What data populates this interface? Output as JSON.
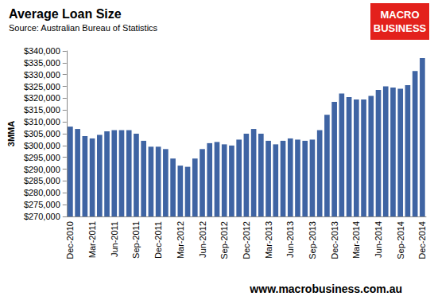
{
  "chart_data": {
    "type": "bar",
    "title": "Average Loan Size",
    "subtitle": "Source: Australian Bureau of Statistics",
    "y_label": "3MMA",
    "logo": [
      "MACRO",
      "BUSINESS"
    ],
    "footer": "www.macrobusiness.com.au",
    "color": "#3f64a3",
    "grid": false,
    "categories": [
      "Dec-2010",
      null,
      null,
      "Mar-2011",
      null,
      null,
      "Jun-2011",
      null,
      null,
      "Sep-2011",
      null,
      null,
      "Dec-2011",
      null,
      null,
      "Mar-2012",
      null,
      null,
      "Jun-2012",
      null,
      null,
      "Sep-2012",
      null,
      null,
      "Dec-2012",
      null,
      null,
      "Mar-2013",
      null,
      null,
      "Jun-2013",
      null,
      null,
      "Sep-2013",
      null,
      null,
      "Dec-2013",
      null,
      null,
      "Mar-2014",
      null,
      null,
      "Jun-2014",
      null,
      null,
      "Sep-2014",
      null,
      null,
      "Dec-2014"
    ],
    "values": [
      308000,
      307000,
      304000,
      303000,
      304500,
      306000,
      306500,
      306500,
      306500,
      305000,
      302000,
      299500,
      299500,
      298500,
      294500,
      291500,
      291000,
      294500,
      298500,
      301000,
      301500,
      300500,
      300000,
      302500,
      305000,
      307000,
      305000,
      302000,
      300500,
      302000,
      303000,
      302500,
      302000,
      302500,
      306500,
      313000,
      318500,
      322000,
      320500,
      319500,
      319500,
      321000,
      323500,
      325000,
      324500,
      324000,
      325500,
      331500,
      337000
    ],
    "ylim": [
      270000,
      340000
    ],
    "yticks": [
      {
        "value": 270000,
        "label": "$270,000"
      },
      {
        "value": 275000,
        "label": "$275,000"
      },
      {
        "value": 280000,
        "label": "$280,000"
      },
      {
        "value": 285000,
        "label": "$285,000"
      },
      {
        "value": 290000,
        "label": "$290,000"
      },
      {
        "value": 295000,
        "label": "$295,000"
      },
      {
        "value": 300000,
        "label": "$300,000"
      },
      {
        "value": 305000,
        "label": "$305,000"
      },
      {
        "value": 310000,
        "label": "$310,000"
      },
      {
        "value": 315000,
        "label": "$315,000"
      },
      {
        "value": 320000,
        "label": "$320,000"
      },
      {
        "value": 325000,
        "label": "$325,000"
      },
      {
        "value": 330000,
        "label": "$330,000"
      },
      {
        "value": 335000,
        "label": "$335,000"
      },
      {
        "value": 340000,
        "label": "$340,000"
      }
    ]
  }
}
